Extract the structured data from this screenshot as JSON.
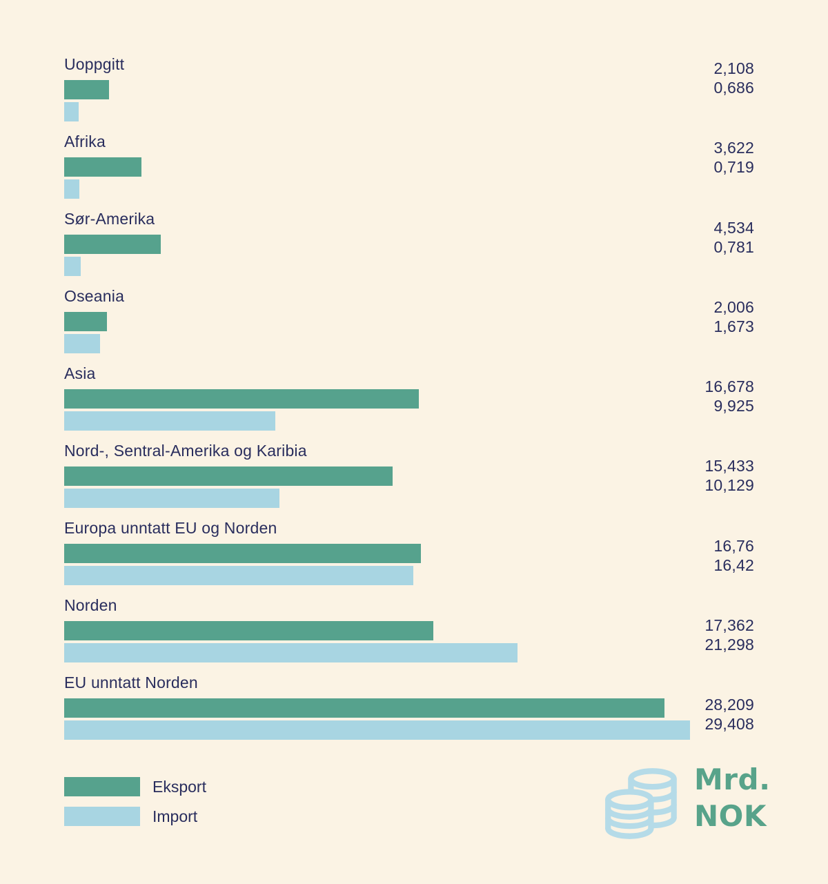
{
  "colors": {
    "background": "#FBF3E4",
    "eksport": "#56A28D",
    "import": "#A8D5E2",
    "text": "#292D5D",
    "logo_green": "#58A38A",
    "coin_blue": "#B5DBE8"
  },
  "chart_data": {
    "type": "bar",
    "orientation": "horizontal",
    "unit": "Mrd. NOK",
    "series_names": [
      "Eksport",
      "Import"
    ],
    "value_axis_max_hint": 29.408,
    "legend_position": "bottom-left",
    "grid": false,
    "categories": [
      {
        "label": "Uoppgitt",
        "eksport_value": 2.108,
        "import_value": 0.686,
        "eksport_display": "2,108",
        "import_display": "0,686"
      },
      {
        "label": "Afrika",
        "eksport_value": 3.622,
        "import_value": 0.719,
        "eksport_display": "3,622",
        "import_display": "0,719"
      },
      {
        "label": "Sør-Amerika",
        "eksport_value": 4.534,
        "import_value": 0.781,
        "eksport_display": "4,534",
        "import_display": "0,781"
      },
      {
        "label": "Oseania",
        "eksport_value": 2.006,
        "import_value": 1.673,
        "eksport_display": "2,006",
        "import_display": "1,673"
      },
      {
        "label": "Asia",
        "eksport_value": 16.678,
        "import_value": 9.925,
        "eksport_display": "16,678",
        "import_display": "9,925"
      },
      {
        "label": "Nord-, Sentral-Amerika og Karibia",
        "eksport_value": 15.433,
        "import_value": 10.129,
        "eksport_display": "15,433",
        "import_display": "10,129"
      },
      {
        "label": "Europa unntatt EU og Norden",
        "eksport_value": 16.76,
        "import_value": 16.42,
        "eksport_display": "16,76",
        "import_display": "16,42"
      },
      {
        "label": "Norden",
        "eksport_value": 17.362,
        "import_value": 21.298,
        "eksport_display": "17,362",
        "import_display": "21,298"
      },
      {
        "label": "EU unntatt Norden",
        "eksport_value": 28.209,
        "import_value": 29.408,
        "eksport_display": "28,209",
        "import_display": "29,408"
      }
    ]
  },
  "legend": {
    "eksport": "Eksport",
    "import": "Import"
  },
  "logo": {
    "line1": "Mrd.",
    "line2": "NOK",
    "icon": "coins-icon"
  }
}
